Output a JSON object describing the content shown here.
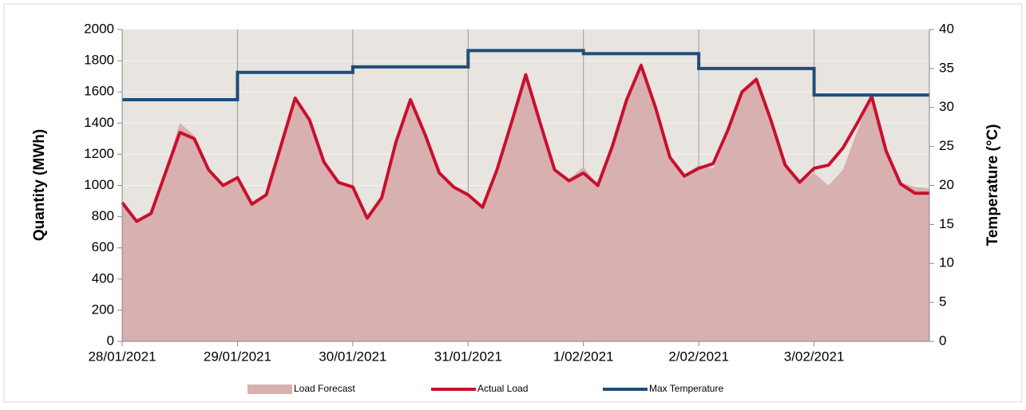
{
  "chart_data": {
    "type": "line",
    "categories": [
      "28/01/2021",
      null,
      null,
      null,
      null,
      null,
      null,
      null,
      "29/01/2021",
      null,
      null,
      null,
      null,
      null,
      null,
      null,
      "30/01/2021",
      null,
      null,
      null,
      null,
      null,
      null,
      null,
      "31/01/2021",
      null,
      null,
      null,
      null,
      null,
      null,
      null,
      "1/02/2021",
      null,
      null,
      null,
      null,
      null,
      null,
      null,
      "2/02/2021",
      null,
      null,
      null,
      null,
      null,
      null,
      null,
      "3/02/2021",
      null,
      null,
      null,
      null,
      null,
      null,
      null,
      null
    ],
    "y_label": "Quantity (MWh)",
    "y2_label": "Temperature (°C)",
    "ylim": [
      0,
      2000
    ],
    "yticks": [
      0,
      200,
      400,
      600,
      800,
      1000,
      1200,
      1400,
      1600,
      1800,
      2000
    ],
    "y2lim": [
      0,
      40
    ],
    "y2ticks": [
      0,
      5,
      10,
      15,
      20,
      25,
      30,
      35,
      40
    ],
    "grid": true,
    "legend": "bottom",
    "series": [
      {
        "name": "Load Forecast",
        "color": "#d9b0b0",
        "kind": "area",
        "values": [
          880,
          770,
          830,
          1100,
          1400,
          1320,
          1100,
          1000,
          1050,
          880,
          950,
          1260,
          1570,
          1430,
          1150,
          1020,
          990,
          790,
          920,
          1270,
          1540,
          1320,
          1080,
          990,
          930,
          860,
          1100,
          1380,
          1680,
          1390,
          1100,
          1040,
          1120,
          1000,
          1240,
          1560,
          1790,
          1520,
          1190,
          1070,
          1130,
          1110,
          1320,
          1610,
          1700,
          1430,
          1140,
          1030,
          1080,
          1000,
          1100,
          1350,
          1580,
          1250,
          1020,
          990,
          980
        ]
      },
      {
        "name": "Actual Load",
        "color": "#c8102e",
        "kind": "line",
        "values": [
          890,
          770,
          820,
          1080,
          1340,
          1300,
          1100,
          1000,
          1050,
          880,
          940,
          1250,
          1560,
          1420,
          1150,
          1020,
          990,
          790,
          920,
          1280,
          1550,
          1330,
          1080,
          990,
          940,
          860,
          1100,
          1400,
          1710,
          1400,
          1100,
          1030,
          1080,
          1000,
          1250,
          1550,
          1770,
          1500,
          1180,
          1060,
          1110,
          1140,
          1350,
          1600,
          1680,
          1420,
          1130,
          1020,
          1110,
          1130,
          1240,
          1400,
          1570,
          1220,
          1010,
          950,
          950
        ]
      },
      {
        "name": "Max Temperature",
        "color": "#1f4e79",
        "kind": "step",
        "axis": "y2",
        "values": [
          31,
          31,
          31,
          31,
          31,
          31,
          31,
          31,
          34.5,
          34.5,
          34.5,
          34.5,
          34.5,
          34.5,
          34.5,
          34.5,
          35.2,
          35.2,
          35.2,
          35.2,
          35.2,
          35.2,
          35.2,
          35.2,
          37.3,
          37.3,
          37.3,
          37.3,
          37.3,
          37.3,
          37.3,
          37.3,
          36.9,
          36.9,
          36.9,
          36.9,
          36.9,
          36.9,
          36.9,
          36.9,
          35,
          35,
          35,
          35,
          35,
          35,
          35,
          35,
          31.6,
          31.6,
          31.6,
          31.6,
          31.6,
          31.6,
          31.6,
          31.6,
          31.6
        ]
      }
    ]
  }
}
